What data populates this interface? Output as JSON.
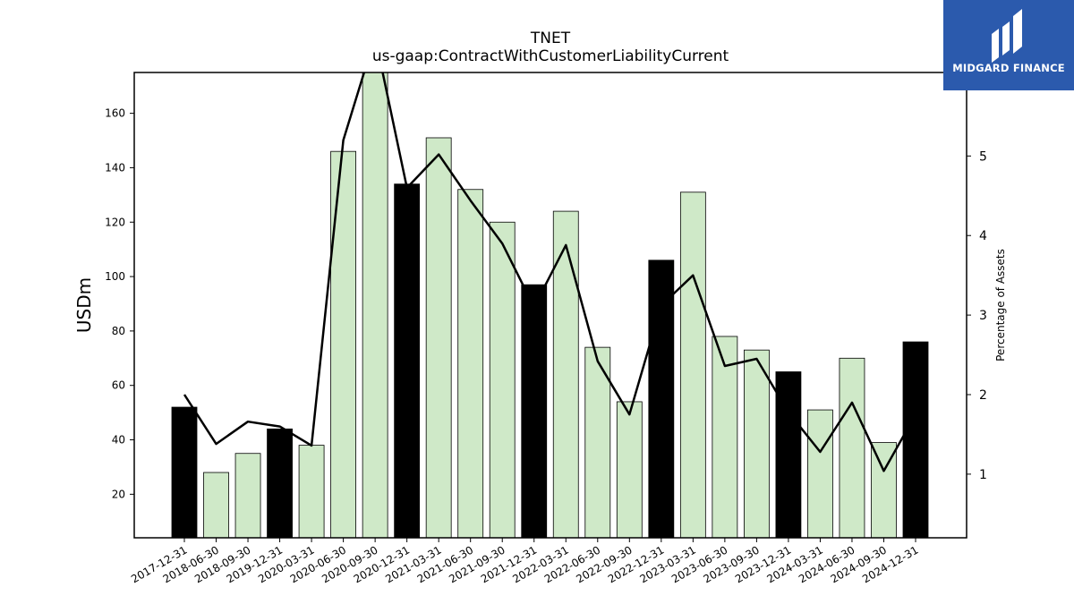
{
  "chart_data": {
    "type": "bar",
    "title": "TNET",
    "subtitle": "us-gaap:ContractWithCustomerLiabilityCurrent",
    "ylabel": "USDm",
    "y2label": "Percentage of Assets",
    "ylim": [
      4,
      175
    ],
    "y2lim": [
      0.2,
      6.05
    ],
    "yticks": [
      20,
      40,
      60,
      80,
      100,
      120,
      140,
      160
    ],
    "y2ticks": [
      1,
      2,
      3,
      4,
      5
    ],
    "categories": [
      "2017-12-31",
      "2018-06-30",
      "2018-09-30",
      "2019-12-31",
      "2020-03-31",
      "2020-06-30",
      "2020-09-30",
      "2020-12-31",
      "2021-03-31",
      "2021-06-30",
      "2021-09-30",
      "2021-12-31",
      "2022-03-31",
      "2022-06-30",
      "2022-09-30",
      "2022-12-31",
      "2023-03-31",
      "2023-06-30",
      "2023-09-30",
      "2023-12-31",
      "2024-03-31",
      "2024-06-30",
      "2024-09-30",
      "2024-12-31"
    ],
    "values": [
      52,
      28,
      35,
      44,
      38,
      146,
      176,
      134,
      151,
      132,
      120,
      97,
      124,
      74,
      54,
      106,
      131,
      78,
      73,
      65,
      51,
      70,
      39,
      76
    ],
    "annual": [
      true,
      false,
      false,
      true,
      false,
      false,
      false,
      true,
      false,
      false,
      false,
      true,
      false,
      false,
      false,
      true,
      false,
      false,
      false,
      true,
      false,
      false,
      false,
      true
    ],
    "pct_assets": [
      2.0,
      1.38,
      1.66,
      1.6,
      1.36,
      5.2,
      6.5,
      4.6,
      5.02,
      4.44,
      3.9,
      3.1,
      3.88,
      2.42,
      1.75,
      3.12,
      3.5,
      2.36,
      2.45,
      1.78,
      1.28,
      1.9,
      1.04,
      1.75
    ],
    "annual_color": "#000000",
    "quarter_color": "#cfe9c8",
    "line_color": "#000000",
    "grid": false,
    "legend": "none"
  },
  "logo": {
    "text": "MIDGARD FINANCE",
    "background": "#2b5aad"
  }
}
